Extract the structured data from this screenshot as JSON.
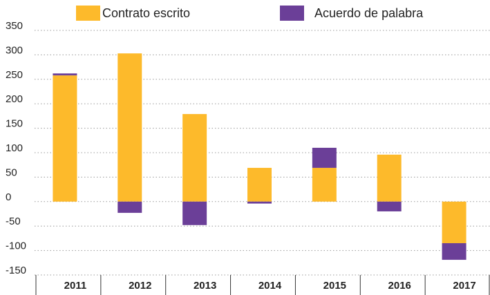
{
  "chart_data": {
    "type": "bar",
    "stacked": true,
    "categories": [
      "2011",
      "2012",
      "2013",
      "2014",
      "2015",
      "2016",
      "2017"
    ],
    "series": [
      {
        "name": "Contrato escrito",
        "color": "#fdba2b",
        "values": [
          258,
          303,
          179,
          69,
          69,
          96,
          -85
        ]
      },
      {
        "name": "Acuerdo de palabra",
        "color": "#6b3f98",
        "values": [
          4,
          -23,
          -48,
          -4,
          41,
          -20,
          -34
        ]
      }
    ],
    "ylim": [
      -150,
      350
    ],
    "yticks": [
      -150,
      -100,
      -50,
      0,
      50,
      100,
      150,
      200,
      250,
      300,
      350
    ],
    "grid": true,
    "legend": "top"
  }
}
